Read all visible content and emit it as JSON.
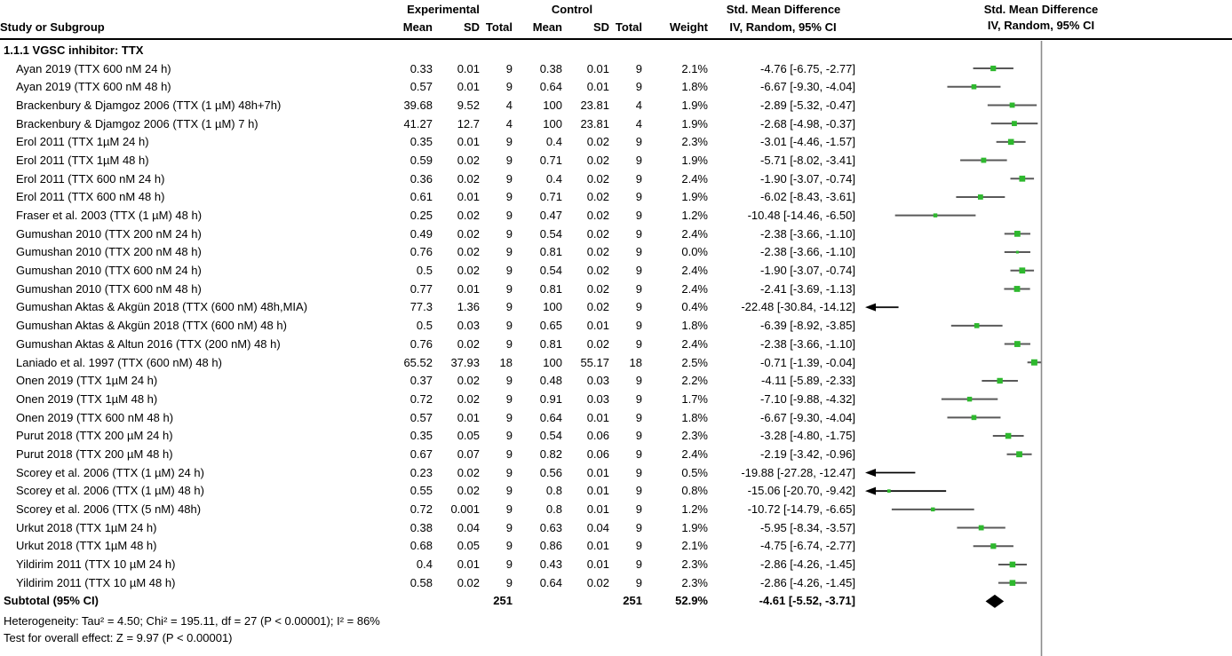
{
  "header": {
    "col_groups": {
      "experimental": "Experimental",
      "control": "Control",
      "smd_text": "Std. Mean Difference",
      "smd_plot": "Std. Mean Difference"
    },
    "columns": {
      "study": "Study or Subgroup",
      "exp_mean": "Mean",
      "exp_sd": "SD",
      "exp_total": "Total",
      "ctrl_mean": "Mean",
      "ctrl_sd": "SD",
      "ctrl_total": "Total",
      "weight": "Weight",
      "ci": "IV, Random, 95% CI",
      "ci_plot": "IV, Random, 95% CI"
    }
  },
  "chart_data": {
    "type": "scatter",
    "variant": "forest-plot",
    "effect_measure": "Std. Mean Difference",
    "method": "IV, Random, 95% CI",
    "section": "1.1.1 VGSC inhibitor: TTX",
    "x_axis": {
      "center": 0,
      "visible_min": -17.2,
      "visible_max": 18.9,
      "zero_line": true
    },
    "colors": {
      "marker": "#2eb82e",
      "ci_line": "#595959",
      "diamond": "#000000",
      "zero_line": "#8c8c8c"
    },
    "legend_position": "none",
    "studies": [
      {
        "label": "Ayan 2019 (TTX 600 nM 24 h)",
        "exp_mean": "0.33",
        "exp_sd": "0.01",
        "exp_total": "9",
        "ctrl_mean": "0.38",
        "ctrl_sd": "0.01",
        "ctrl_total": "9",
        "weight": "2.1%",
        "smd": -4.76,
        "ci_low": -6.75,
        "ci_high": -2.77,
        "ci_text": "-4.76 [-6.75, -2.77]"
      },
      {
        "label": "Ayan 2019 (TTX 600 nM 48 h)",
        "exp_mean": "0.57",
        "exp_sd": "0.01",
        "exp_total": "9",
        "ctrl_mean": "0.64",
        "ctrl_sd": "0.01",
        "ctrl_total": "9",
        "weight": "1.8%",
        "smd": -6.67,
        "ci_low": -9.3,
        "ci_high": -4.04,
        "ci_text": "-6.67 [-9.30, -4.04]"
      },
      {
        "label": "Brackenbury & Djamgoz 2006 (TTX (1 µM) 48h+7h)",
        "exp_mean": "39.68",
        "exp_sd": "9.52",
        "exp_total": "4",
        "ctrl_mean": "100",
        "ctrl_sd": "23.81",
        "ctrl_total": "4",
        "weight": "1.9%",
        "smd": -2.89,
        "ci_low": -5.32,
        "ci_high": -0.47,
        "ci_text": "-2.89 [-5.32, -0.47]"
      },
      {
        "label": "Brackenbury & Djamgoz 2006 (TTX (1 µM) 7 h)",
        "exp_mean": "41.27",
        "exp_sd": "12.7",
        "exp_total": "4",
        "ctrl_mean": "100",
        "ctrl_sd": "23.81",
        "ctrl_total": "4",
        "weight": "1.9%",
        "smd": -2.68,
        "ci_low": -4.98,
        "ci_high": -0.37,
        "ci_text": "-2.68 [-4.98, -0.37]"
      },
      {
        "label": "Erol 2011 (TTX 1µM 24 h)",
        "exp_mean": "0.35",
        "exp_sd": "0.01",
        "exp_total": "9",
        "ctrl_mean": "0.4",
        "ctrl_sd": "0.02",
        "ctrl_total": "9",
        "weight": "2.3%",
        "smd": -3.01,
        "ci_low": -4.46,
        "ci_high": -1.57,
        "ci_text": "-3.01 [-4.46, -1.57]"
      },
      {
        "label": "Erol 2011 (TTX 1µM 48 h)",
        "exp_mean": "0.59",
        "exp_sd": "0.02",
        "exp_total": "9",
        "ctrl_mean": "0.71",
        "ctrl_sd": "0.02",
        "ctrl_total": "9",
        "weight": "1.9%",
        "smd": -5.71,
        "ci_low": -8.02,
        "ci_high": -3.41,
        "ci_text": "-5.71 [-8.02, -3.41]"
      },
      {
        "label": "Erol 2011 (TTX 600 nM 24 h)",
        "exp_mean": "0.36",
        "exp_sd": "0.02",
        "exp_total": "9",
        "ctrl_mean": "0.4",
        "ctrl_sd": "0.02",
        "ctrl_total": "9",
        "weight": "2.4%",
        "smd": -1.9,
        "ci_low": -3.07,
        "ci_high": -0.74,
        "ci_text": "-1.90 [-3.07, -0.74]"
      },
      {
        "label": "Erol 2011 (TTX 600 nM 48 h)",
        "exp_mean": "0.61",
        "exp_sd": "0.01",
        "exp_total": "9",
        "ctrl_mean": "0.71",
        "ctrl_sd": "0.02",
        "ctrl_total": "9",
        "weight": "1.9%",
        "smd": -6.02,
        "ci_low": -8.43,
        "ci_high": -3.61,
        "ci_text": "-6.02 [-8.43, -3.61]"
      },
      {
        "label": "Fraser et al. 2003 (TTX (1 µM) 48 h)",
        "exp_mean": "0.25",
        "exp_sd": "0.02",
        "exp_total": "9",
        "ctrl_mean": "0.47",
        "ctrl_sd": "0.02",
        "ctrl_total": "9",
        "weight": "1.2%",
        "smd": -10.48,
        "ci_low": -14.46,
        "ci_high": -6.5,
        "ci_text": "-10.48 [-14.46, -6.50]"
      },
      {
        "label": "Gumushan 2010 (TTX 200 nM 24 h)",
        "exp_mean": "0.49",
        "exp_sd": "0.02",
        "exp_total": "9",
        "ctrl_mean": "0.54",
        "ctrl_sd": "0.02",
        "ctrl_total": "9",
        "weight": "2.4%",
        "smd": -2.38,
        "ci_low": -3.66,
        "ci_high": -1.1,
        "ci_text": "-2.38 [-3.66, -1.10]"
      },
      {
        "label": "Gumushan 2010 (TTX 200 nM 48 h)",
        "exp_mean": "0.76",
        "exp_sd": "0.02",
        "exp_total": "9",
        "ctrl_mean": "0.81",
        "ctrl_sd": "0.02",
        "ctrl_total": "9",
        "weight": "0.0%",
        "smd": -2.38,
        "ci_low": -3.66,
        "ci_high": -1.1,
        "ci_text": "-2.38 [-3.66, -1.10]"
      },
      {
        "label": "Gumushan 2010 (TTX 600 nM 24 h)",
        "exp_mean": "0.5",
        "exp_sd": "0.02",
        "exp_total": "9",
        "ctrl_mean": "0.54",
        "ctrl_sd": "0.02",
        "ctrl_total": "9",
        "weight": "2.4%",
        "smd": -1.9,
        "ci_low": -3.07,
        "ci_high": -0.74,
        "ci_text": "-1.90 [-3.07, -0.74]"
      },
      {
        "label": "Gumushan 2010 (TTX 600 nM 48 h)",
        "exp_mean": "0.77",
        "exp_sd": "0.01",
        "exp_total": "9",
        "ctrl_mean": "0.81",
        "ctrl_sd": "0.02",
        "ctrl_total": "9",
        "weight": "2.4%",
        "smd": -2.41,
        "ci_low": -3.69,
        "ci_high": -1.13,
        "ci_text": "-2.41 [-3.69, -1.13]"
      },
      {
        "label": "Gumushan Aktas & Akgün 2018 (TTX (600 nM) 48h,MIA)",
        "exp_mean": "77.3",
        "exp_sd": "1.36",
        "exp_total": "9",
        "ctrl_mean": "100",
        "ctrl_sd": "0.02",
        "ctrl_total": "9",
        "weight": "0.4%",
        "smd": -22.48,
        "ci_low": -30.84,
        "ci_high": -14.12,
        "ci_text": "-22.48 [-30.84, -14.12]"
      },
      {
        "label": "Gumushan Aktas & Akgün 2018 (TTX (600 nM) 48 h)",
        "exp_mean": "0.5",
        "exp_sd": "0.03",
        "exp_total": "9",
        "ctrl_mean": "0.65",
        "ctrl_sd": "0.01",
        "ctrl_total": "9",
        "weight": "1.8%",
        "smd": -6.39,
        "ci_low": -8.92,
        "ci_high": -3.85,
        "ci_text": "-6.39 [-8.92, -3.85]"
      },
      {
        "label": "Gumushan Aktas & Altun 2016 (TTX (200 nM) 48 h)",
        "exp_mean": "0.76",
        "exp_sd": "0.02",
        "exp_total": "9",
        "ctrl_mean": "0.81",
        "ctrl_sd": "0.02",
        "ctrl_total": "9",
        "weight": "2.4%",
        "smd": -2.38,
        "ci_low": -3.66,
        "ci_high": -1.1,
        "ci_text": "-2.38 [-3.66, -1.10]"
      },
      {
        "label": "Laniado et al. 1997 (TTX (600 nM) 48 h)",
        "exp_mean": "65.52",
        "exp_sd": "37.93",
        "exp_total": "18",
        "ctrl_mean": "100",
        "ctrl_sd": "55.17",
        "ctrl_total": "18",
        "weight": "2.5%",
        "smd": -0.71,
        "ci_low": -1.39,
        "ci_high": -0.04,
        "ci_text": "-0.71 [-1.39, -0.04]"
      },
      {
        "label": "Onen 2019 (TTX 1µM 24 h)",
        "exp_mean": "0.37",
        "exp_sd": "0.02",
        "exp_total": "9",
        "ctrl_mean": "0.48",
        "ctrl_sd": "0.03",
        "ctrl_total": "9",
        "weight": "2.2%",
        "smd": -4.11,
        "ci_low": -5.89,
        "ci_high": -2.33,
        "ci_text": "-4.11 [-5.89, -2.33]"
      },
      {
        "label": "Onen 2019 (TTX 1µM 48 h)",
        "exp_mean": "0.72",
        "exp_sd": "0.02",
        "exp_total": "9",
        "ctrl_mean": "0.91",
        "ctrl_sd": "0.03",
        "ctrl_total": "9",
        "weight": "1.7%",
        "smd": -7.1,
        "ci_low": -9.88,
        "ci_high": -4.32,
        "ci_text": "-7.10 [-9.88, -4.32]"
      },
      {
        "label": "Onen 2019 (TTX 600 nM 48 h)",
        "exp_mean": "0.57",
        "exp_sd": "0.01",
        "exp_total": "9",
        "ctrl_mean": "0.64",
        "ctrl_sd": "0.01",
        "ctrl_total": "9",
        "weight": "1.8%",
        "smd": -6.67,
        "ci_low": -9.3,
        "ci_high": -4.04,
        "ci_text": "-6.67 [-9.30, -4.04]"
      },
      {
        "label": "Purut 2018 (TTX 200 µM 24 h)",
        "exp_mean": "0.35",
        "exp_sd": "0.05",
        "exp_total": "9",
        "ctrl_mean": "0.54",
        "ctrl_sd": "0.06",
        "ctrl_total": "9",
        "weight": "2.3%",
        "smd": -3.28,
        "ci_low": -4.8,
        "ci_high": -1.75,
        "ci_text": "-3.28 [-4.80, -1.75]"
      },
      {
        "label": "Purut 2018 (TTX 200 µM 48 h)",
        "exp_mean": "0.67",
        "exp_sd": "0.07",
        "exp_total": "9",
        "ctrl_mean": "0.82",
        "ctrl_sd": "0.06",
        "ctrl_total": "9",
        "weight": "2.4%",
        "smd": -2.19,
        "ci_low": -3.42,
        "ci_high": -0.96,
        "ci_text": "-2.19 [-3.42, -0.96]"
      },
      {
        "label": "Scorey et al. 2006 (TTX (1 µM) 24 h)",
        "exp_mean": "0.23",
        "exp_sd": "0.02",
        "exp_total": "9",
        "ctrl_mean": "0.56",
        "ctrl_sd": "0.01",
        "ctrl_total": "9",
        "weight": "0.5%",
        "smd": -19.88,
        "ci_low": -27.28,
        "ci_high": -12.47,
        "ci_text": "-19.88 [-27.28, -12.47]"
      },
      {
        "label": "Scorey et al. 2006 (TTX (1 µM) 48 h)",
        "exp_mean": "0.55",
        "exp_sd": "0.02",
        "exp_total": "9",
        "ctrl_mean": "0.8",
        "ctrl_sd": "0.01",
        "ctrl_total": "9",
        "weight": "0.8%",
        "smd": -15.06,
        "ci_low": -20.7,
        "ci_high": -9.42,
        "ci_text": "-15.06 [-20.70, -9.42]"
      },
      {
        "label": "Scorey et al. 2006 (TTX (5 nM) 48h)",
        "exp_mean": "0.72",
        "exp_sd": "0.001",
        "exp_total": "9",
        "ctrl_mean": "0.8",
        "ctrl_sd": "0.01",
        "ctrl_total": "9",
        "weight": "1.2%",
        "smd": -10.72,
        "ci_low": -14.79,
        "ci_high": -6.65,
        "ci_text": "-10.72 [-14.79, -6.65]"
      },
      {
        "label": "Urkut 2018 (TTX 1µM 24 h)",
        "exp_mean": "0.38",
        "exp_sd": "0.04",
        "exp_total": "9",
        "ctrl_mean": "0.63",
        "ctrl_sd": "0.04",
        "ctrl_total": "9",
        "weight": "1.9%",
        "smd": -5.95,
        "ci_low": -8.34,
        "ci_high": -3.57,
        "ci_text": "-5.95 [-8.34, -3.57]"
      },
      {
        "label": "Urkut 2018 (TTX 1µM 48 h)",
        "exp_mean": "0.68",
        "exp_sd": "0.05",
        "exp_total": "9",
        "ctrl_mean": "0.86",
        "ctrl_sd": "0.01",
        "ctrl_total": "9",
        "weight": "2.1%",
        "smd": -4.75,
        "ci_low": -6.74,
        "ci_high": -2.77,
        "ci_text": "-4.75 [-6.74, -2.77]"
      },
      {
        "label": "Yildirim 2011 (TTX 10 µM 24 h)",
        "exp_mean": "0.4",
        "exp_sd": "0.01",
        "exp_total": "9",
        "ctrl_mean": "0.43",
        "ctrl_sd": "0.01",
        "ctrl_total": "9",
        "weight": "2.3%",
        "smd": -2.86,
        "ci_low": -4.26,
        "ci_high": -1.45,
        "ci_text": "-2.86 [-4.26, -1.45]"
      },
      {
        "label": "Yildirim 2011 (TTX 10 µM 48 h)",
        "exp_mean": "0.58",
        "exp_sd": "0.02",
        "exp_total": "9",
        "ctrl_mean": "0.64",
        "ctrl_sd": "0.02",
        "ctrl_total": "9",
        "weight": "2.3%",
        "smd": -2.86,
        "ci_low": -4.26,
        "ci_high": -1.45,
        "ci_text": "-2.86 [-4.26, -1.45]"
      }
    ],
    "subtotal": {
      "label": "Subtotal (95% CI)",
      "exp_total": "251",
      "ctrl_total": "251",
      "weight": "52.9%",
      "smd": -4.61,
      "ci_low": -5.52,
      "ci_high": -3.71,
      "ci_text": "-4.61 [-5.52, -3.71]"
    },
    "heterogeneity": "Heterogeneity: Tau² = 4.50; Chi² = 195.11, df = 27 (P < 0.00001); I² = 86%",
    "overall_effect": "Test for overall effect: Z = 9.97 (P < 0.00001)"
  }
}
